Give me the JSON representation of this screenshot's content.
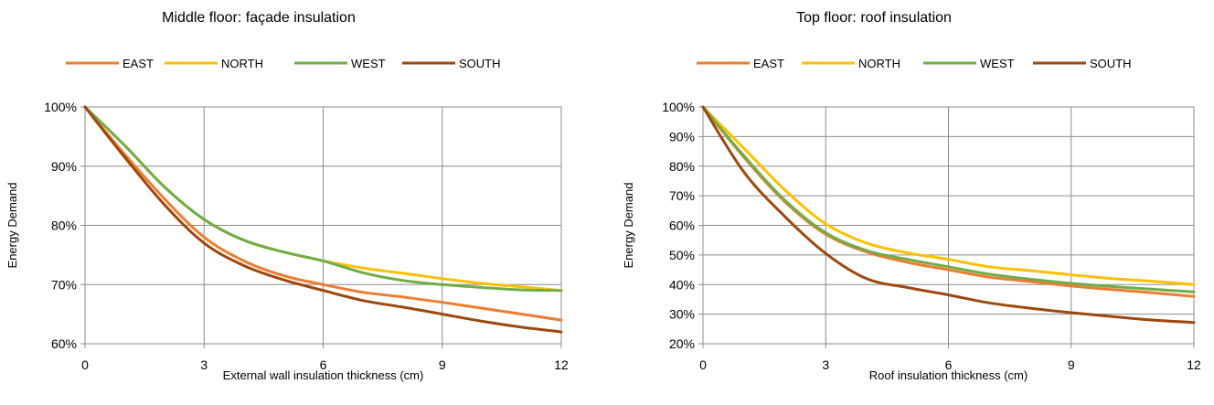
{
  "chart_data": [
    {
      "type": "line",
      "title": "Middle floor: façade insulation",
      "xlabel": "External wall insulation thickness (cm)",
      "ylabel": "Energy Demand",
      "xlim": [
        0,
        12
      ],
      "ylim": [
        0.6,
        1.0
      ],
      "x_ticks": [
        "0",
        "3",
        "6",
        "9",
        "12"
      ],
      "y_ticks": [
        "60%",
        "70%",
        "80%",
        "90%",
        "100%"
      ],
      "grid": true,
      "legend": "top",
      "series": [
        {
          "name": "EAST",
          "color": "#ED7D31",
          "x": [
            0,
            1,
            2,
            3,
            4,
            5,
            6,
            7,
            8,
            9,
            10,
            11,
            12
          ],
          "y": [
            1.0,
            0.92,
            0.845,
            0.78,
            0.74,
            0.715,
            0.7,
            0.687,
            0.679,
            0.67,
            0.66,
            0.65,
            0.64
          ]
        },
        {
          "name": "NORTH",
          "color": "#FFC000",
          "x": [
            0,
            1,
            2,
            3,
            4,
            5,
            6,
            7,
            8,
            9,
            10,
            11,
            12
          ],
          "y": [
            1.0,
            0.935,
            0.865,
            0.81,
            0.775,
            0.755,
            0.74,
            0.728,
            0.719,
            0.71,
            0.702,
            0.696,
            0.69
          ]
        },
        {
          "name": "WEST",
          "color": "#70AD47",
          "x": [
            0,
            1,
            2,
            3,
            4,
            5,
            6,
            7,
            8,
            9,
            10,
            11,
            12
          ],
          "y": [
            1.0,
            0.935,
            0.865,
            0.81,
            0.775,
            0.755,
            0.74,
            0.72,
            0.707,
            0.7,
            0.695,
            0.691,
            0.69
          ]
        },
        {
          "name": "SOUTH",
          "color": "#9E480E",
          "x": [
            0,
            1,
            2,
            3,
            4,
            5,
            6,
            7,
            8,
            9,
            10,
            11,
            12
          ],
          "y": [
            1.0,
            0.915,
            0.835,
            0.77,
            0.732,
            0.708,
            0.69,
            0.673,
            0.662,
            0.65,
            0.638,
            0.628,
            0.62
          ]
        }
      ]
    },
    {
      "type": "line",
      "title": "Top floor: roof insulation",
      "xlabel": "Roof insulation thickness (cm)",
      "ylabel": "Energy Demand",
      "xlim": [
        0,
        12
      ],
      "ylim": [
        0.2,
        1.0
      ],
      "x_ticks": [
        "0",
        "3",
        "6",
        "9",
        "12"
      ],
      "y_ticks": [
        "20%",
        "30%",
        "40%",
        "50%",
        "60%",
        "70%",
        "80%",
        "90%",
        "100%"
      ],
      "grid": true,
      "legend": "top",
      "series": [
        {
          "name": "EAST",
          "color": "#ED7D31",
          "x": [
            0,
            1,
            2,
            3,
            4,
            5,
            6,
            7,
            8,
            9,
            10,
            11,
            12
          ],
          "y": [
            1.0,
            0.83,
            0.68,
            0.57,
            0.51,
            0.475,
            0.45,
            0.425,
            0.41,
            0.395,
            0.383,
            0.372,
            0.36
          ]
        },
        {
          "name": "NORTH",
          "color": "#FFC000",
          "x": [
            0,
            1,
            2,
            3,
            4,
            5,
            6,
            7,
            8,
            9,
            10,
            11,
            12
          ],
          "y": [
            1.0,
            0.86,
            0.72,
            0.605,
            0.54,
            0.507,
            0.485,
            0.46,
            0.447,
            0.433,
            0.42,
            0.411,
            0.4
          ]
        },
        {
          "name": "WEST",
          "color": "#70AD47",
          "x": [
            0,
            1,
            2,
            3,
            4,
            5,
            6,
            7,
            8,
            9,
            10,
            11,
            12
          ],
          "y": [
            1.0,
            0.835,
            0.685,
            0.575,
            0.515,
            0.485,
            0.46,
            0.435,
            0.418,
            0.404,
            0.393,
            0.384,
            0.375
          ]
        },
        {
          "name": "SOUTH",
          "color": "#9E480E",
          "x": [
            0,
            1,
            2,
            3,
            4,
            5,
            6,
            7,
            8,
            9,
            10,
            11,
            12
          ],
          "y": [
            1.0,
            0.78,
            0.63,
            0.505,
            0.42,
            0.39,
            0.365,
            0.338,
            0.32,
            0.305,
            0.292,
            0.28,
            0.272
          ]
        }
      ]
    }
  ]
}
